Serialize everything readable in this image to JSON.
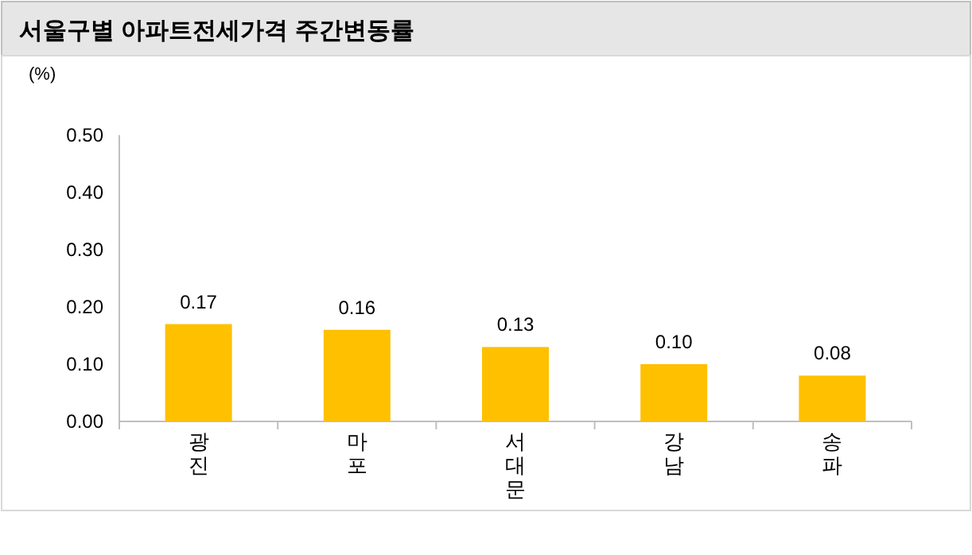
{
  "chart_data": {
    "type": "bar",
    "title": "서울구별 아파트전세가격 주간변동률",
    "ylabel": "(%)",
    "categories": [
      "광진",
      "마포",
      "서대문",
      "강남",
      "송파"
    ],
    "values": [
      0.17,
      0.16,
      0.13,
      0.1,
      0.08
    ],
    "value_labels": [
      "0.17",
      "0.16",
      "0.13",
      "0.10",
      "0.08"
    ],
    "color": "#ffc000",
    "ylim": [
      0,
      0.5
    ],
    "yticks": [
      {
        "value": 0,
        "label": "0.00"
      },
      {
        "value": 0.1,
        "label": "0.10"
      },
      {
        "value": 0.2,
        "label": "0.20"
      },
      {
        "value": 0.3,
        "label": "0.30"
      },
      {
        "value": 0.4,
        "label": "0.40"
      },
      {
        "value": 0.5,
        "label": "0.50"
      }
    ]
  }
}
